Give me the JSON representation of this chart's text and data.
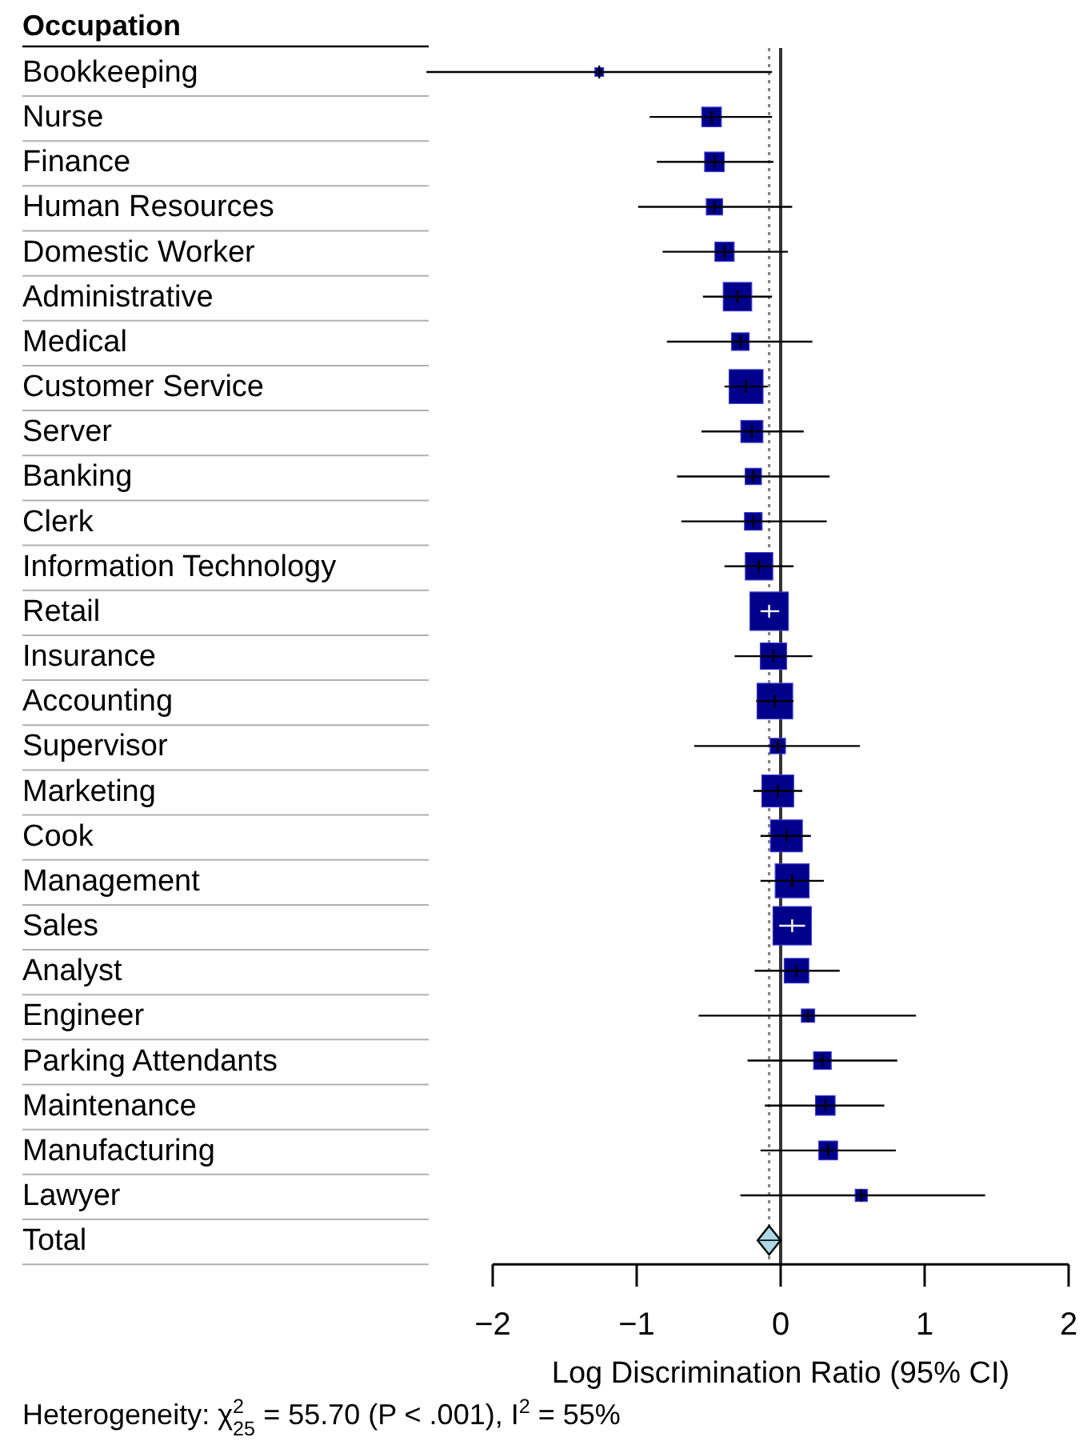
{
  "chart_data": {
    "type": "bubble",
    "orientation": "horizontal",
    "marker": "square",
    "ylabel": "Occupation",
    "xlabel": "Log Discrimination Ratio (95% CI)",
    "categories": [
      "Bookkeeping",
      "Nurse",
      "Finance",
      "Human Resources",
      "Domestic Worker",
      "Administrative",
      "Medical",
      "Customer Service",
      "Server",
      "Banking",
      "Clerk",
      "Information Technology",
      "Retail",
      "Insurance",
      "Accounting",
      "Supervisor",
      "Marketing",
      "Cook",
      "Management",
      "Sales",
      "Analyst",
      "Engineer",
      "Parking Attendants",
      "Maintenance",
      "Manufacturing",
      "Lawyer",
      "Total"
    ],
    "series": [
      {
        "color": "#00008b",
        "values": [
          -1.26,
          -0.48,
          -0.46,
          -0.46,
          -0.39,
          -0.3,
          -0.28,
          -0.24,
          -0.2,
          -0.19,
          -0.19,
          -0.15,
          -0.08,
          -0.05,
          -0.04,
          -0.02,
          -0.02,
          0.04,
          0.08,
          0.08,
          0.11,
          0.19,
          0.29,
          0.31,
          0.33,
          0.56,
          null
        ],
        "errors": [
          [
            -2.46,
            -0.06
          ],
          [
            -0.91,
            -0.06
          ],
          [
            -0.86,
            -0.05
          ],
          [
            -0.99,
            0.08
          ],
          [
            -0.82,
            0.05
          ],
          [
            -0.54,
            -0.06
          ],
          [
            -0.79,
            0.22
          ],
          [
            -0.39,
            -0.09
          ],
          [
            -0.55,
            0.16
          ],
          [
            -0.72,
            0.34
          ],
          [
            -0.69,
            0.32
          ],
          [
            -0.39,
            0.09
          ],
          [
            -0.14,
            -0.01
          ],
          [
            -0.32,
            0.22
          ],
          [
            -0.17,
            0.09
          ],
          [
            -0.6,
            0.55
          ],
          [
            -0.19,
            0.15
          ],
          [
            -0.14,
            0.21
          ],
          [
            -0.14,
            0.3
          ],
          [
            -0.01,
            0.17
          ],
          [
            -0.18,
            0.41
          ],
          [
            -0.57,
            0.94
          ],
          [
            -0.23,
            0.81
          ],
          [
            -0.11,
            0.72
          ],
          [
            -0.14,
            0.8
          ],
          [
            -0.28,
            1.42
          ],
          null
        ],
        "sizes": [
          0.05,
          0.26,
          0.26,
          0.18,
          0.25,
          0.55,
          0.21,
          0.78,
          0.33,
          0.18,
          0.21,
          0.51,
          1,
          0.47,
          0.86,
          0.16,
          0.69,
          0.69,
          0.78,
          1,
          0.41,
          0.12,
          0.21,
          0.26,
          0.24,
          0.1,
          null
        ]
      },
      {
        "type": "scatter",
        "marker": "diamond",
        "color": "#add8e6",
        "values": [
          null,
          null,
          null,
          null,
          null,
          null,
          null,
          null,
          null,
          null,
          null,
          null,
          null,
          null,
          null,
          null,
          null,
          null,
          null,
          null,
          null,
          null,
          null,
          null,
          null,
          null,
          -0.08
        ],
        "errors": [
          null,
          null,
          null,
          null,
          null,
          null,
          null,
          null,
          null,
          null,
          null,
          null,
          null,
          null,
          null,
          null,
          null,
          null,
          null,
          null,
          null,
          null,
          null,
          null,
          null,
          null,
          [
            -0.16,
            0.0
          ]
        ]
      }
    ],
    "ref_lines": [
      {
        "axis": "x",
        "value": 0,
        "line_style": "solid",
        "color": "#333333"
      },
      {
        "axis": "x",
        "value": -0.08,
        "line_style": "dotted",
        "color": "#808080"
      }
    ],
    "xlim": [
      -2,
      2
    ],
    "xticks": [
      {
        "value": -2,
        "label": "−2"
      },
      {
        "value": -1,
        "label": "−1"
      },
      0,
      1,
      2
    ],
    "annotations": [
      "Heterogeneity: χ$^{2}$$_{25}$ = 55.70 (P < .001), I$^{2}$ = 55%"
    ]
  }
}
